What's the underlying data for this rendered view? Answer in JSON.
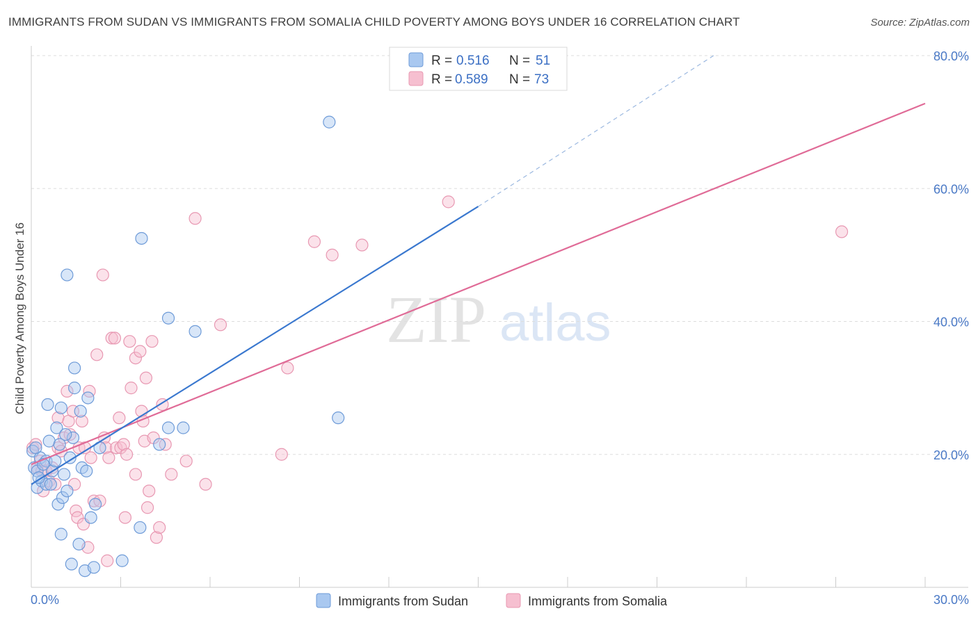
{
  "title": "IMMIGRANTS FROM SUDAN VS IMMIGRANTS FROM SOMALIA CHILD POVERTY AMONG BOYS UNDER 16 CORRELATION CHART",
  "source": "Source: ZipAtlas.com",
  "watermark": {
    "zip": "ZIP",
    "atlas": "atlas"
  },
  "colors": {
    "sudan_fill": "#a9c8f0",
    "sudan_stroke": "#6e9bd8",
    "sudan_line": "#3a78cf",
    "somalia_fill": "#f6bfd0",
    "somalia_stroke": "#e898b2",
    "somalia_line": "#e06b97",
    "grid": "#dddddd",
    "tick_label": "#4a79c6"
  },
  "legend": {
    "rows": [
      {
        "r_label": "R = ",
        "r_value": "0.516",
        "n_label": "N = ",
        "n_value": "51"
      },
      {
        "r_label": "R = ",
        "r_value": "0.589",
        "n_label": "N = ",
        "n_value": "73"
      }
    ]
  },
  "bottom_legend": [
    "Immigrants from Sudan",
    "Immigrants from Somalia"
  ],
  "chart_data": {
    "type": "scatter",
    "title": "IMMIGRANTS FROM SUDAN VS IMMIGRANTS FROM SOMALIA CHILD POVERTY AMONG BOYS UNDER 16 CORRELATION CHART",
    "xlabel": "",
    "ylabel": "Child Poverty Among Boys Under 16",
    "xlim": [
      0,
      30
    ],
    "ylim": [
      0,
      80
    ],
    "x_tick_labels": [
      {
        "value": 0,
        "label": "0.0%"
      },
      {
        "value": 30,
        "label": "30.0%"
      }
    ],
    "y_tick_labels": [
      {
        "value": 20,
        "label": "20.0%"
      },
      {
        "value": 40,
        "label": "40.0%"
      },
      {
        "value": 60,
        "label": "60.0%"
      },
      {
        "value": 80,
        "label": "80.0%"
      }
    ],
    "grid": true,
    "legend_position": "top-center",
    "series": [
      {
        "name": "Immigrants from Sudan",
        "color": "#a9c8f0",
        "trend": {
          "x": [
            0,
            15
          ],
          "y": [
            15.5,
            57.3
          ],
          "dashed_extension_to": [
            22.9,
            80
          ]
        },
        "points": [
          [
            0.05,
            20.5
          ],
          [
            0.1,
            18.0
          ],
          [
            0.2,
            17.5
          ],
          [
            0.2,
            15.0
          ],
          [
            0.3,
            19.5
          ],
          [
            0.35,
            16.0
          ],
          [
            0.5,
            15.5
          ],
          [
            0.5,
            19.0
          ],
          [
            0.55,
            27.5
          ],
          [
            0.6,
            22.0
          ],
          [
            0.65,
            15.5
          ],
          [
            0.7,
            17.5
          ],
          [
            0.8,
            19.0
          ],
          [
            0.85,
            24.0
          ],
          [
            0.9,
            12.5
          ],
          [
            0.95,
            21.5
          ],
          [
            1.0,
            27.0
          ],
          [
            1.0,
            8.0
          ],
          [
            1.05,
            13.5
          ],
          [
            1.1,
            17.0
          ],
          [
            1.2,
            14.5
          ],
          [
            1.2,
            47.0
          ],
          [
            1.3,
            19.5
          ],
          [
            1.35,
            3.5
          ],
          [
            1.4,
            22.5
          ],
          [
            1.45,
            30.0
          ],
          [
            1.45,
            33.0
          ],
          [
            1.6,
            6.5
          ],
          [
            1.65,
            26.5
          ],
          [
            1.7,
            18.0
          ],
          [
            1.8,
            2.5
          ],
          [
            1.85,
            17.5
          ],
          [
            1.9,
            28.5
          ],
          [
            2.0,
            10.5
          ],
          [
            2.1,
            3.0
          ],
          [
            2.15,
            12.5
          ],
          [
            2.3,
            21.0
          ],
          [
            3.05,
            4.0
          ],
          [
            3.7,
            52.5
          ],
          [
            3.65,
            9.0
          ],
          [
            4.3,
            21.5
          ],
          [
            4.6,
            40.5
          ],
          [
            4.6,
            24.0
          ],
          [
            5.1,
            24.0
          ],
          [
            5.5,
            38.5
          ],
          [
            10.0,
            70.0
          ],
          [
            10.3,
            25.5
          ],
          [
            0.15,
            21.0
          ],
          [
            0.25,
            16.5
          ],
          [
            0.4,
            18.5
          ],
          [
            1.15,
            23.0
          ]
        ]
      },
      {
        "name": "Immigrants from Somalia",
        "color": "#f6bfd0",
        "trend": {
          "x": [
            0,
            30
          ],
          "y": [
            18.5,
            72.8
          ]
        },
        "points": [
          [
            0.05,
            21.0
          ],
          [
            0.2,
            18.0
          ],
          [
            0.3,
            19.0
          ],
          [
            0.4,
            14.5
          ],
          [
            0.5,
            17.5
          ],
          [
            0.6,
            16.0
          ],
          [
            0.7,
            18.0
          ],
          [
            0.8,
            15.5
          ],
          [
            0.9,
            25.5
          ],
          [
            0.9,
            21.0
          ],
          [
            1.0,
            20.5
          ],
          [
            1.1,
            22.5
          ],
          [
            1.2,
            29.5
          ],
          [
            1.25,
            25.0
          ],
          [
            1.3,
            23.0
          ],
          [
            1.4,
            26.5
          ],
          [
            1.45,
            15.5
          ],
          [
            1.5,
            11.5
          ],
          [
            1.55,
            10.5
          ],
          [
            1.6,
            21.0
          ],
          [
            1.7,
            25.0
          ],
          [
            1.75,
            9.5
          ],
          [
            1.8,
            21.0
          ],
          [
            1.9,
            6.0
          ],
          [
            1.95,
            29.5
          ],
          [
            2.0,
            19.5
          ],
          [
            2.1,
            13.0
          ],
          [
            2.2,
            35.0
          ],
          [
            2.3,
            13.0
          ],
          [
            2.4,
            47.0
          ],
          [
            2.45,
            22.5
          ],
          [
            2.5,
            21.0
          ],
          [
            2.55,
            4.0
          ],
          [
            2.6,
            19.5
          ],
          [
            2.7,
            37.5
          ],
          [
            2.8,
            37.5
          ],
          [
            2.85,
            21.0
          ],
          [
            2.95,
            25.5
          ],
          [
            3.0,
            21.0
          ],
          [
            3.1,
            21.5
          ],
          [
            3.15,
            10.5
          ],
          [
            3.2,
            20.0
          ],
          [
            3.3,
            37.0
          ],
          [
            3.35,
            30.0
          ],
          [
            3.5,
            17.0
          ],
          [
            3.5,
            34.5
          ],
          [
            3.65,
            35.5
          ],
          [
            3.7,
            26.5
          ],
          [
            3.75,
            25.0
          ],
          [
            3.8,
            22.0
          ],
          [
            3.85,
            31.5
          ],
          [
            3.9,
            12.0
          ],
          [
            3.95,
            14.5
          ],
          [
            4.1,
            22.5
          ],
          [
            4.05,
            37.0
          ],
          [
            4.2,
            7.5
          ],
          [
            4.3,
            9.0
          ],
          [
            4.4,
            27.5
          ],
          [
            4.5,
            21.5
          ],
          [
            4.7,
            17.0
          ],
          [
            5.2,
            19.0
          ],
          [
            5.5,
            55.5
          ],
          [
            5.85,
            15.5
          ],
          [
            6.35,
            39.5
          ],
          [
            8.4,
            20.0
          ],
          [
            8.6,
            33.0
          ],
          [
            9.5,
            52.0
          ],
          [
            10.1,
            50.0
          ],
          [
            11.1,
            51.5
          ],
          [
            14.0,
            58.0
          ],
          [
            27.2,
            53.5
          ],
          [
            0.15,
            21.5
          ],
          [
            0.35,
            17.5
          ]
        ]
      }
    ]
  }
}
